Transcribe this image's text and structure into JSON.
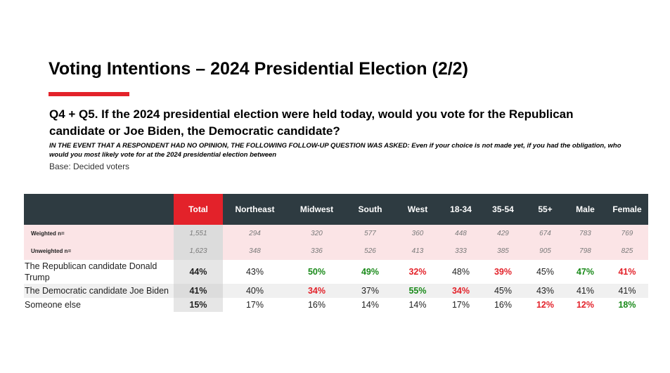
{
  "title": "Voting Intentions – 2024 Presidential Election (2/2)",
  "question": "Q4 + Q5. If the 2024 presidential election were held today, would you vote for the Republican candidate or Joe Biden, the Democratic candidate?",
  "followup": "IN THE EVENT THAT A RESPONDENT HAD NO OPINION, THE FOLLOWING FOLLOW-UP QUESTION WAS ASKED:  Even if your choice is not made yet, if you had the obligation, who would you most likely vote for at the 2024 presidential election between",
  "base": "Base: Decided voters",
  "colors": {
    "accent_red": "#e3222a",
    "header_dark": "#2e3b41",
    "green": "#1a8a1a"
  },
  "table": {
    "headers": [
      "Total",
      "Northeast",
      "Midwest",
      "South",
      "West",
      "18-34",
      "35-54",
      "55+",
      "Male",
      "Female"
    ],
    "weighted": {
      "label": "Weighted n=",
      "values": [
        "1,551",
        "294",
        "320",
        "577",
        "360",
        "448",
        "429",
        "674",
        "783",
        "769"
      ]
    },
    "unweighted": {
      "label": "Unweighted n=",
      "values": [
        "1,623",
        "348",
        "336",
        "526",
        "413",
        "333",
        "385",
        "905",
        "798",
        "825"
      ]
    },
    "rows": [
      {
        "label": "The Republican candidate Donald Trump",
        "values": [
          "44%",
          "43%",
          "50%",
          "49%",
          "32%",
          "48%",
          "39%",
          "45%",
          "47%",
          "41%"
        ]
      },
      {
        "label": "The Democratic candidate Joe Biden",
        "values": [
          "41%",
          "40%",
          "34%",
          "37%",
          "55%",
          "34%",
          "45%",
          "43%",
          "41%",
          "41%"
        ]
      },
      {
        "label": "Someone else",
        "values": [
          "15%",
          "17%",
          "16%",
          "14%",
          "14%",
          "17%",
          "16%",
          "12%",
          "12%",
          "18%"
        ]
      }
    ]
  }
}
